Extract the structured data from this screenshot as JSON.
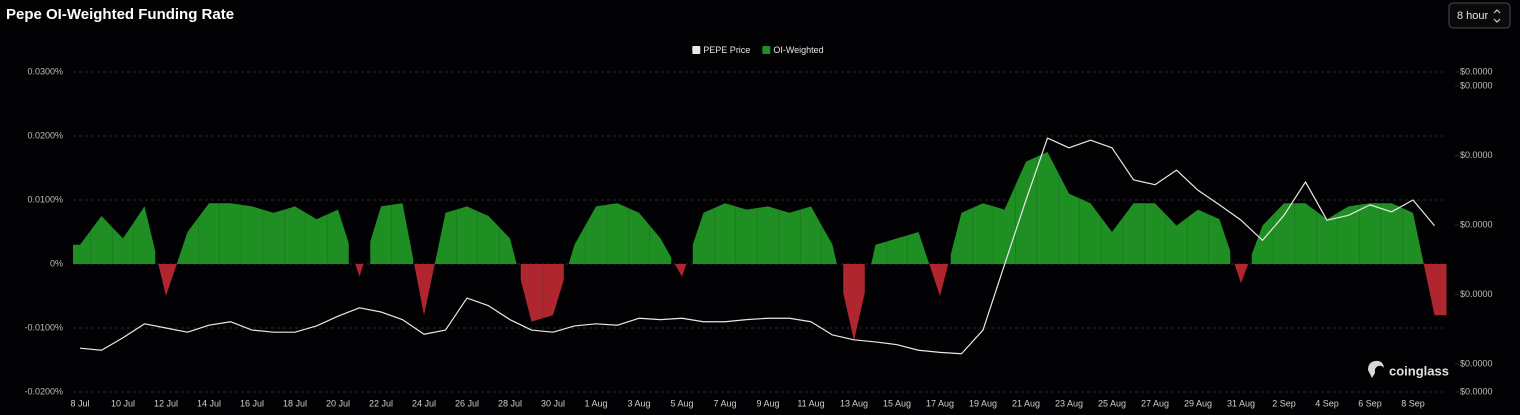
{
  "chart_data": {
    "type": "area",
    "title": "Pepe OI-Weighted Funding Rate",
    "categories": [
      "8 Jul",
      null,
      "10 Jul",
      null,
      "12 Jul",
      null,
      "14 Jul",
      null,
      "16 Jul",
      null,
      "18 Jul",
      null,
      "20 Jul",
      null,
      "22 Jul",
      null,
      "24 Jul",
      null,
      "26 Jul",
      null,
      "28 Jul",
      null,
      "30 Jul",
      null,
      "1 Aug",
      null,
      "3 Aug",
      null,
      "5 Aug",
      null,
      "7 Aug",
      null,
      "9 Aug",
      null,
      "11 Aug",
      null,
      "13 Aug",
      null,
      "15 Aug",
      null,
      "17 Aug",
      null,
      "19 Aug",
      null,
      "21 Aug",
      null,
      "23 Aug",
      null,
      "25 Aug",
      null,
      "27 Aug",
      null,
      "29 Aug",
      null,
      "31 Aug",
      null,
      "2 Sep",
      null,
      "4 Sep",
      null,
      "6 Sep",
      null,
      "8 Sep",
      null
    ],
    "series": [
      {
        "name": "PEPE Price",
        "type": "line",
        "axis": "y2",
        "color": "#e8e8e8",
        "values": [
          1.023e-06,
          1.02e-06,
          1.038e-06,
          1.058e-06,
          1.052e-06,
          1.046e-06,
          1.056e-06,
          1.061e-06,
          1.049e-06,
          1.046e-06,
          1.046e-06,
          1.055e-06,
          1.069e-06,
          1.081e-06,
          1.075e-06,
          1.064e-06,
          1.043e-06,
          1.049e-06,
          1.095e-06,
          1.084e-06,
          1.064e-06,
          1.049e-06,
          1.046e-06,
          1.055e-06,
          1.058e-06,
          1.056e-06,
          1.066e-06,
          1.064e-06,
          1.066e-06,
          1.061e-06,
          1.061e-06,
          1.064e-06,
          1.066e-06,
          1.066e-06,
          1.061e-06,
          1.042e-06,
          1.035e-06,
          1.032e-06,
          1.028e-06,
          1.02e-06,
          1.017e-06,
          1.015e-06,
          1.049e-06,
          1.143e-06,
          1.236e-06,
          1.325e-06,
          1.311e-06,
          1.322e-06,
          1.311e-06,
          1.265e-06,
          1.258e-06,
          1.279e-06,
          1.25e-06,
          1.229e-06,
          1.207e-06,
          1.178e-06,
          1.214e-06,
          1.262e-06,
          1.207e-06,
          1.214e-06,
          1.229e-06,
          1.219e-06,
          1.236e-06,
          1.199e-06
        ]
      },
      {
        "name": "OI-Weighted",
        "type": "area",
        "color": "#1f8f24",
        "negative_color": "#b0262f",
        "values": [
          0.003,
          0.0075,
          0.004,
          0.009,
          -0.005,
          0.005,
          0.0095,
          0.0095,
          0.009,
          0.008,
          0.009,
          0.007,
          0.0085,
          -0.002,
          0.009,
          0.0095,
          -0.008,
          0.008,
          0.009,
          0.0075,
          0.004,
          -0.009,
          -0.008,
          0.003,
          0.009,
          0.0095,
          0.008,
          0.004,
          -0.002,
          0.008,
          0.0095,
          0.0085,
          0.009,
          0.008,
          0.009,
          0.003,
          -0.012,
          0.003,
          0.004,
          0.005,
          -0.005,
          0.008,
          0.0095,
          0.0085,
          0.016,
          0.0175,
          0.011,
          0.0095,
          0.005,
          0.0095,
          0.0095,
          0.006,
          0.0085,
          0.007,
          -0.003,
          0.006,
          0.0095,
          0.0095,
          0.007,
          0.009,
          0.0095,
          0.0095,
          0.008,
          -0.008
        ]
      }
    ],
    "ylim": [
      -0.02,
      0.03
    ],
    "yticks": [
      {
        "value": -0.02,
        "label": "-0.0200%"
      },
      {
        "value": -0.01,
        "label": "-0.0100%"
      },
      {
        "value": 0,
        "label": "0%"
      },
      {
        "value": 0.01,
        "label": "0.0100%"
      },
      {
        "value": 0.02,
        "label": "0.0200%"
      },
      {
        "value": 0.03,
        "label": "0.0300%"
      }
    ],
    "y2lim": [
      9.6e-07,
      1.42e-06
    ],
    "y2ticks": [
      {
        "value": 9.6e-07,
        "label": "$0.0000"
      },
      {
        "value": 1e-06,
        "label": "$0.0000"
      },
      {
        "value": 1.1e-06,
        "label": "$0.0000"
      },
      {
        "value": 1.2e-06,
        "label": "$0.0000"
      },
      {
        "value": 1.3e-06,
        "label": "$0.0000"
      },
      {
        "value": 1.4e-06,
        "label": "$0.0000"
      },
      {
        "value": 1.42e-06,
        "label": "$0.0000"
      }
    ],
    "grid": true,
    "legend": "top"
  },
  "interval_selector": "8 hour",
  "watermark": "coinglass"
}
